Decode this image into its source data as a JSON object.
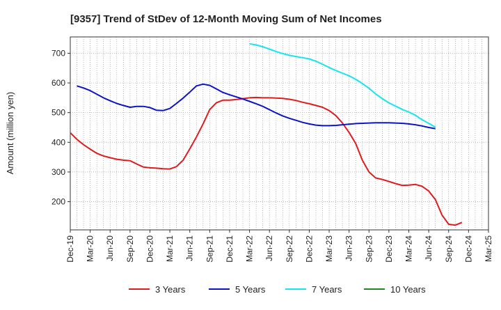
{
  "chart_data": {
    "type": "line",
    "title": "[9357]  Trend of StDev of 12-Month Moving Sum of Net Incomes",
    "xlabel": "",
    "ylabel": "Amount (million yen)",
    "ylim": [
      105,
      755
    ],
    "yticks": [
      200,
      300,
      400,
      500,
      600,
      700
    ],
    "grid": true,
    "legend_position": "bottom",
    "x_tick_labels": [
      "Dec-19",
      "Mar-20",
      "Jun-20",
      "Sep-20",
      "Dec-20",
      "Mar-21",
      "Jun-21",
      "Sep-21",
      "Dec-21",
      "Mar-22",
      "Jun-22",
      "Sep-22",
      "Dec-22",
      "Mar-23",
      "Jun-23",
      "Sep-23",
      "Dec-23",
      "Mar-24",
      "Jun-24",
      "Sep-24",
      "Dec-24",
      "Mar-25"
    ],
    "x_months": [
      "2019-12",
      "2020-01",
      "2020-02",
      "2020-03",
      "2020-04",
      "2020-05",
      "2020-06",
      "2020-07",
      "2020-08",
      "2020-09",
      "2020-10",
      "2020-11",
      "2020-12",
      "2021-01",
      "2021-02",
      "2021-03",
      "2021-04",
      "2021-05",
      "2021-06",
      "2021-07",
      "2021-08",
      "2021-09",
      "2021-10",
      "2021-11",
      "2021-12",
      "2022-01",
      "2022-02",
      "2022-03",
      "2022-04",
      "2022-05",
      "2022-06",
      "2022-07",
      "2022-08",
      "2022-09",
      "2022-10",
      "2022-11",
      "2022-12",
      "2023-01",
      "2023-02",
      "2023-03",
      "2023-04",
      "2023-05",
      "2023-06",
      "2023-07",
      "2023-08",
      "2023-09",
      "2023-10",
      "2023-11",
      "2023-12",
      "2024-01",
      "2024-02",
      "2024-03",
      "2024-04",
      "2024-05",
      "2024-06",
      "2024-07",
      "2024-08",
      "2024-09",
      "2024-10",
      "2024-11",
      "2024-12"
    ],
    "series": [
      {
        "name": "3 Years",
        "color": "#e31a1c",
        "values": [
          432,
          410,
          392,
          377,
          363,
          354,
          348,
          343,
          340,
          338,
          327,
          317,
          314,
          313,
          311,
          310,
          318,
          340,
          378,
          418,
          462,
          510,
          533,
          542,
          542,
          544,
          547,
          550,
          551,
          550,
          550,
          549,
          548,
          545,
          541,
          535,
          530,
          524,
          518,
          507,
          490,
          465,
          433,
          396,
          340,
          300,
          280,
          275,
          268,
          261,
          255,
          256,
          258,
          252,
          236,
          207,
          155,
          124,
          121,
          130,
          null
        ],
        "end_index": 59
      },
      {
        "name": "5 Years",
        "color": "#0a14c8",
        "values": [
          null,
          null,
          null,
          null,
          null,
          null,
          null,
          null,
          null,
          null,
          null,
          null,
          null,
          null,
          null,
          null,
          null,
          null,
          null,
          null,
          null,
          null,
          null,
          null,
          null,
          null,
          null,
          null,
          null,
          null,
          null,
          null,
          null,
          null,
          null,
          null,
          null,
          null,
          null,
          null,
          null,
          null,
          null,
          null,
          null,
          null,
          null,
          null,
          null,
          null,
          null,
          null,
          null,
          null,
          null,
          null,
          null,
          null,
          null,
          null,
          null
        ],
        "points": [
          [
            1,
            590
          ],
          [
            2,
            583
          ],
          [
            3,
            574
          ],
          [
            4,
            562
          ],
          [
            5,
            550
          ],
          [
            6,
            540
          ],
          [
            7,
            531
          ],
          [
            8,
            524
          ],
          [
            9,
            518
          ],
          [
            10,
            521
          ],
          [
            11,
            521
          ],
          [
            12,
            517
          ],
          [
            13,
            508
          ],
          [
            14,
            507
          ],
          [
            15,
            514
          ],
          [
            16,
            531
          ],
          [
            17,
            549
          ],
          [
            18,
            569
          ],
          [
            19,
            590
          ],
          [
            20,
            596
          ],
          [
            21,
            592
          ],
          [
            22,
            580
          ],
          [
            23,
            568
          ],
          [
            24,
            560
          ],
          [
            25,
            553
          ],
          [
            26,
            546
          ],
          [
            27,
            538
          ],
          [
            28,
            530
          ],
          [
            29,
            521
          ],
          [
            30,
            510
          ],
          [
            31,
            499
          ],
          [
            32,
            489
          ],
          [
            33,
            481
          ],
          [
            34,
            474
          ],
          [
            35,
            467
          ],
          [
            36,
            462
          ],
          [
            37,
            458
          ],
          [
            38,
            456
          ],
          [
            39,
            456
          ],
          [
            40,
            457
          ],
          [
            41,
            459
          ],
          [
            42,
            461
          ],
          [
            43,
            463
          ],
          [
            44,
            464
          ],
          [
            45,
            465
          ],
          [
            46,
            466
          ],
          [
            47,
            466
          ],
          [
            48,
            466
          ],
          [
            49,
            465
          ],
          [
            50,
            464
          ],
          [
            51,
            462
          ],
          [
            52,
            459
          ],
          [
            53,
            455
          ],
          [
            54,
            450
          ],
          [
            55,
            446
          ]
        ],
        "end_index": 55
      },
      {
        "name": "7 Years",
        "color": "#14e6f0",
        "points": [
          [
            27,
            732
          ],
          [
            28,
            728
          ],
          [
            29,
            722
          ],
          [
            30,
            714
          ],
          [
            31,
            706
          ],
          [
            32,
            699
          ],
          [
            33,
            693
          ],
          [
            34,
            689
          ],
          [
            35,
            685
          ],
          [
            36,
            681
          ],
          [
            37,
            673
          ],
          [
            38,
            663
          ],
          [
            39,
            652
          ],
          [
            40,
            642
          ],
          [
            41,
            633
          ],
          [
            42,
            624
          ],
          [
            43,
            612
          ],
          [
            44,
            598
          ],
          [
            45,
            582
          ],
          [
            46,
            563
          ],
          [
            47,
            547
          ],
          [
            48,
            533
          ],
          [
            49,
            522
          ],
          [
            50,
            511
          ],
          [
            51,
            502
          ],
          [
            52,
            491
          ],
          [
            53,
            476
          ],
          [
            54,
            464
          ],
          [
            55,
            451
          ]
        ],
        "end_index": 55
      },
      {
        "name": "10 Years",
        "color": "#1f8a1f",
        "points": []
      }
    ]
  }
}
